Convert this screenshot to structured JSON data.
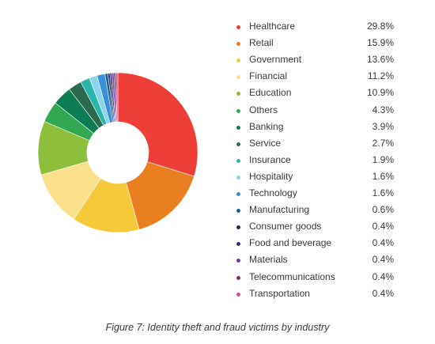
{
  "chart_data": {
    "type": "pie",
    "title": "",
    "categories": [
      "Healthcare",
      "Retail",
      "Government",
      "Financial",
      "Education",
      "Others",
      "Banking",
      "Service",
      "Insurance",
      "Hospitality",
      "Technology",
      "Manufacturing",
      "Consumer goods",
      "Food and beverage",
      "Materials",
      "Telecommunications",
      "Transportation"
    ],
    "values": [
      29.8,
      15.9,
      13.6,
      11.2,
      10.9,
      4.3,
      3.9,
      2.7,
      1.9,
      1.6,
      1.6,
      0.6,
      0.4,
      0.4,
      0.4,
      0.4,
      0.4
    ],
    "labels": [
      "29.8%",
      "15.9%",
      "13.6%",
      "11.2%",
      "10.9%",
      "4.3%",
      "3.9%",
      "2.7%",
      "1.9%",
      "1.6%",
      "1.6%",
      "0.6%",
      "0.4%",
      "0.4%",
      "0.4%",
      "0.4%",
      "0.4%"
    ],
    "colors": [
      "#ee3e38",
      "#e97f21",
      "#f5c93a",
      "#fbe08c",
      "#8dbf3d",
      "#33a852",
      "#0c7c55",
      "#2a6a4f",
      "#2cb5ad",
      "#8dd3ec",
      "#3a8fd6",
      "#1f5f94",
      "#1b2f5a",
      "#3f2c79",
      "#6a3d9a",
      "#8b2c6f",
      "#d24a8c"
    ],
    "legend_position": "right",
    "donut": true
  },
  "caption": "Figure 7: Identity theft and fraud victims by industry"
}
